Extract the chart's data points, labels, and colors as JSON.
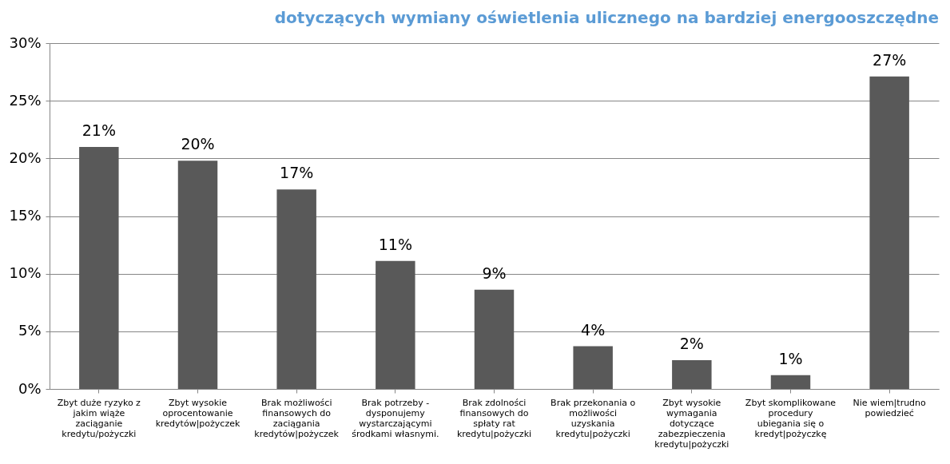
{
  "chart_data": {
    "type": "bar",
    "title": "dotyczących wymiany oświetlenia ulicznego na bardziej energooszczędne",
    "categories": [
      "Zbyt duże ryzyko z jakim wiąże zaciąganie kredytu/pożyczki",
      "Zbyt wysokie oprocentowanie kredytów|pożyczek",
      "Brak możliwości finansowych do zaciągania kredytów|pożyczek",
      "Brak potrzeby - dysponujemy wystarczającymi środkami własnymi.",
      "Brak zdolności finansowych do spłaty rat kredytu|pożyczki",
      "Brak przekonania o możliwości uzyskania kredytu|pożyczki",
      "Zbyt wysokie wymagania dotyczące zabezpieczenia kredytu|pożyczki",
      "Zbyt skomplikowane procedury ubiegania się o kredyt|pożyczkę",
      "Nie wiem|trudno powiedzieć"
    ],
    "values": [
      21.0,
      19.8,
      17.3,
      11.1,
      8.6,
      3.7,
      2.5,
      1.2,
      27.1
    ],
    "value_labels": [
      "21%",
      "20%",
      "17%",
      "11%",
      "9%",
      "4%",
      "2%",
      "1%",
      "27%"
    ],
    "color": "#595959",
    "ylim": [
      0,
      30
    ],
    "yticks": [
      {
        "value": 0,
        "label": "0%"
      },
      {
        "value": 5,
        "label": "5%"
      },
      {
        "value": 10,
        "label": "10%"
      },
      {
        "value": 15,
        "label": "15%"
      },
      {
        "value": 20,
        "label": "20%"
      },
      {
        "value": 25,
        "label": "25%"
      },
      {
        "value": 30,
        "label": "30%"
      }
    ],
    "grid": "y"
  }
}
